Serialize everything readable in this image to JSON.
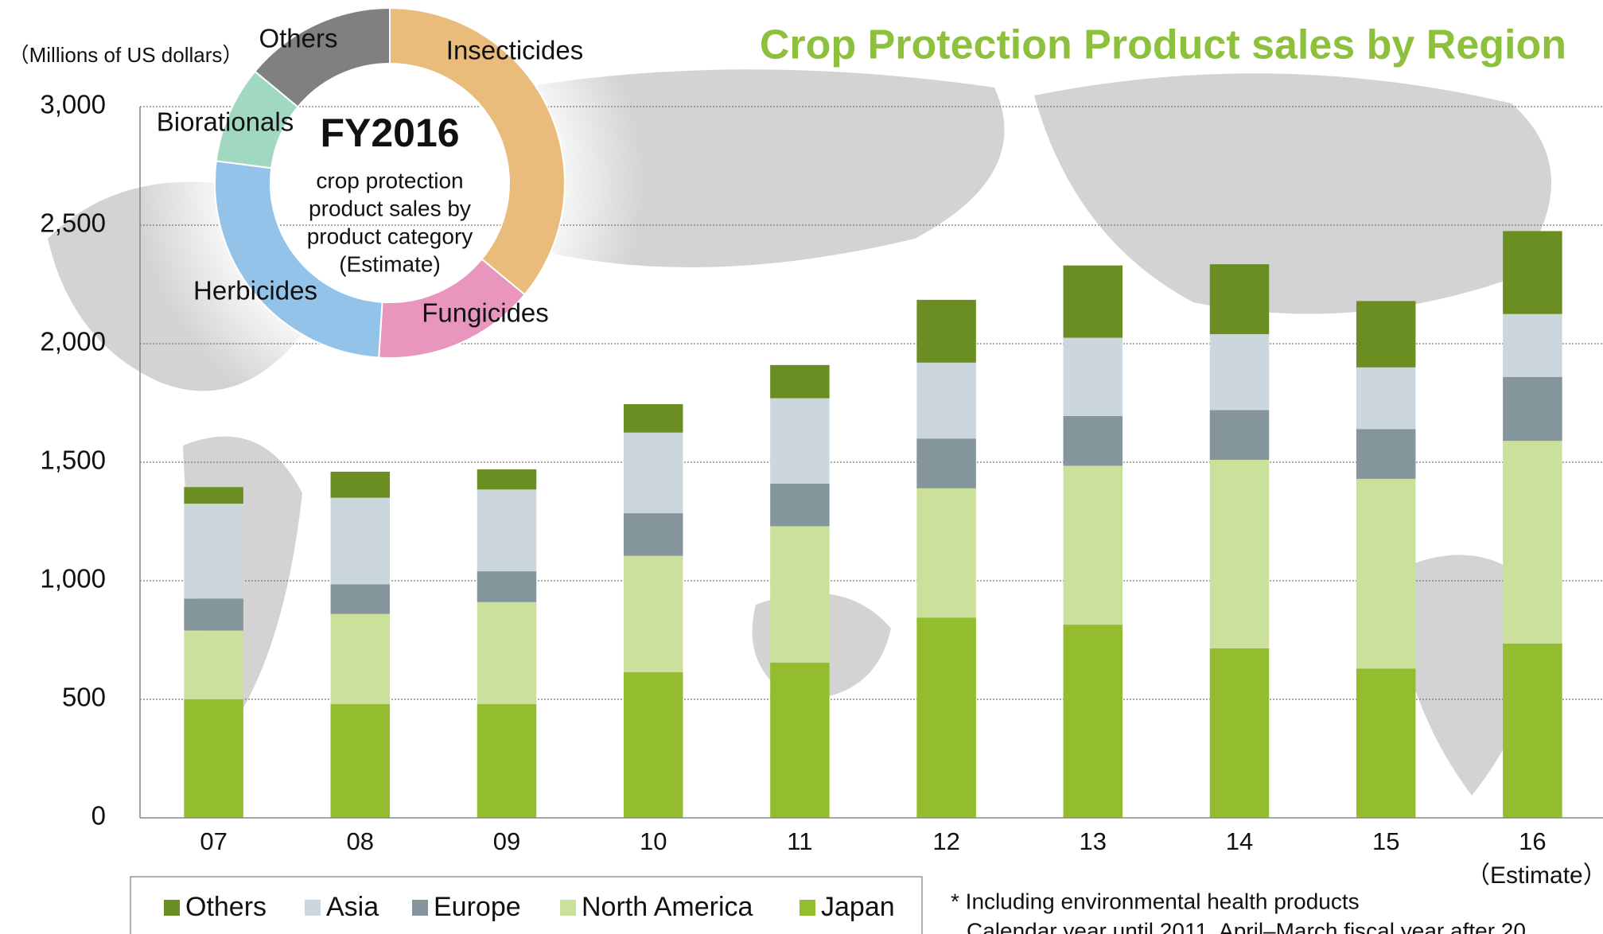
{
  "chart_data": [
    {
      "type": "bar",
      "stacked": true,
      "title": "Crop Protection Product sales by Region",
      "y_axis_label": "（Millions of US dollars）",
      "categories": [
        "07",
        "08",
        "09",
        "10",
        "11",
        "12",
        "13",
        "14",
        "15",
        "16"
      ],
      "annotations": [
        "（Estimate）"
      ],
      "series": [
        {
          "name": "Japan",
          "color": "#93bd2e",
          "values": [
            500,
            480,
            480,
            615,
            655,
            845,
            815,
            715,
            630,
            735
          ]
        },
        {
          "name": "North America",
          "color": "#cbe09a",
          "values": [
            290,
            380,
            430,
            490,
            575,
            545,
            670,
            795,
            800,
            855
          ]
        },
        {
          "name": "Europe",
          "color": "#84959c",
          "values": [
            135,
            125,
            130,
            180,
            180,
            210,
            210,
            210,
            210,
            270
          ]
        },
        {
          "name": "Asia",
          "color": "#cbd6dd",
          "values": [
            400,
            365,
            345,
            340,
            360,
            320,
            330,
            320,
            260,
            265
          ]
        },
        {
          "name": "Others",
          "color": "#6b8e23",
          "values": [
            70,
            110,
            85,
            120,
            140,
            265,
            305,
            295,
            280,
            350
          ]
        }
      ],
      "ylim": [
        0,
        3000
      ],
      "yticks": [
        0,
        500,
        {
          "value": 1000,
          "label": "1,000"
        },
        {
          "value": 1500,
          "label": "1,500"
        },
        {
          "value": 2000,
          "label": "2,000"
        },
        {
          "value": 2500,
          "label": "2,500"
        },
        {
          "value": 3000,
          "label": "3,000"
        }
      ],
      "grid": true,
      "footnotes": [
        "* Including environmental health products",
        "Calendar year until 2011, April–March fiscal year after 20"
      ]
    },
    {
      "type": "donut",
      "title": "FY2016",
      "subtitle_lines": [
        "crop protection",
        "product sales by",
        "product category",
        "(Estimate)"
      ],
      "categories": [
        "Insecticides",
        "Fungicides",
        "Herbicides",
        "Biorationals",
        "Others"
      ],
      "values": [
        36,
        15,
        26,
        9,
        14
      ],
      "colors": [
        "#e9bc7b",
        "#e996bf",
        "#94c3ea",
        "#a1d8c1",
        "#808080"
      ]
    }
  ]
}
